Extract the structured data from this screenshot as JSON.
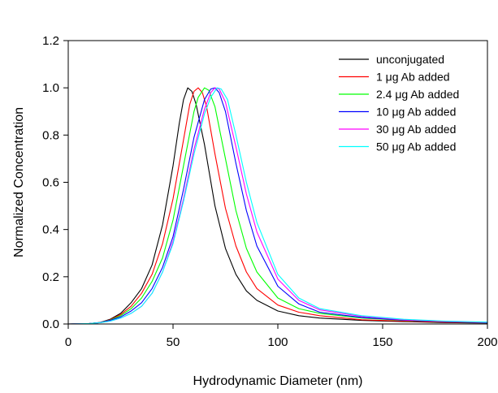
{
  "chart_data": {
    "type": "line",
    "title": "",
    "xlabel": "Hydrodynamic Diameter (nm)",
    "ylabel": "Normalized Concentration",
    "xlim": [
      0,
      200
    ],
    "ylim": [
      0,
      1.2
    ],
    "xticks": [
      "0",
      "50",
      "100",
      "150",
      "200"
    ],
    "yticks": [
      "0.0",
      "0.2",
      "0.4",
      "0.6",
      "0.8",
      "1.0",
      "1.2"
    ],
    "grid": false,
    "legend_position": "top-right",
    "series": [
      {
        "name": "unconjugated",
        "color": "#000000",
        "points": [
          [
            0,
            0
          ],
          [
            10,
            0.002
          ],
          [
            15,
            0.006
          ],
          [
            20,
            0.02
          ],
          [
            25,
            0.045
          ],
          [
            30,
            0.09
          ],
          [
            35,
            0.15
          ],
          [
            40,
            0.25
          ],
          [
            45,
            0.42
          ],
          [
            50,
            0.67
          ],
          [
            53,
            0.85
          ],
          [
            55,
            0.95
          ],
          [
            57,
            1.0
          ],
          [
            59,
            0.985
          ],
          [
            61,
            0.93
          ],
          [
            65,
            0.76
          ],
          [
            70,
            0.5
          ],
          [
            75,
            0.32
          ],
          [
            80,
            0.21
          ],
          [
            85,
            0.14
          ],
          [
            90,
            0.1
          ],
          [
            100,
            0.055
          ],
          [
            110,
            0.035
          ],
          [
            120,
            0.025
          ],
          [
            140,
            0.015
          ],
          [
            160,
            0.01
          ],
          [
            180,
            0.006
          ],
          [
            200,
            0.004
          ]
        ]
      },
      {
        "name": "1 μg Ab added",
        "color": "#ff0000",
        "points": [
          [
            0,
            0
          ],
          [
            10,
            0.002
          ],
          [
            15,
            0.006
          ],
          [
            20,
            0.018
          ],
          [
            25,
            0.04
          ],
          [
            30,
            0.075
          ],
          [
            35,
            0.13
          ],
          [
            40,
            0.21
          ],
          [
            45,
            0.34
          ],
          [
            50,
            0.53
          ],
          [
            55,
            0.78
          ],
          [
            58,
            0.93
          ],
          [
            60,
            0.985
          ],
          [
            62,
            1.0
          ],
          [
            64,
            0.98
          ],
          [
            66,
            0.92
          ],
          [
            70,
            0.72
          ],
          [
            75,
            0.49
          ],
          [
            80,
            0.33
          ],
          [
            85,
            0.22
          ],
          [
            90,
            0.15
          ],
          [
            100,
            0.08
          ],
          [
            110,
            0.05
          ],
          [
            120,
            0.035
          ],
          [
            140,
            0.018
          ],
          [
            160,
            0.012
          ],
          [
            180,
            0.008
          ],
          [
            200,
            0.005
          ]
        ]
      },
      {
        "name": "2.4 μg Ab added",
        "color": "#00ff00",
        "points": [
          [
            0,
            0
          ],
          [
            10,
            0.002
          ],
          [
            15,
            0.006
          ],
          [
            20,
            0.016
          ],
          [
            25,
            0.035
          ],
          [
            30,
            0.065
          ],
          [
            35,
            0.11
          ],
          [
            40,
            0.18
          ],
          [
            45,
            0.28
          ],
          [
            50,
            0.44
          ],
          [
            55,
            0.67
          ],
          [
            60,
            0.9
          ],
          [
            62,
            0.96
          ],
          [
            65,
            1.0
          ],
          [
            67,
            0.99
          ],
          [
            70,
            0.92
          ],
          [
            75,
            0.7
          ],
          [
            80,
            0.48
          ],
          [
            85,
            0.32
          ],
          [
            90,
            0.22
          ],
          [
            100,
            0.11
          ],
          [
            110,
            0.065
          ],
          [
            120,
            0.045
          ],
          [
            140,
            0.025
          ],
          [
            160,
            0.015
          ],
          [
            180,
            0.01
          ],
          [
            200,
            0.006
          ]
        ]
      },
      {
        "name": "10 μg Ab added",
        "color": "#0000ff",
        "points": [
          [
            0,
            0
          ],
          [
            10,
            0.002
          ],
          [
            15,
            0.006
          ],
          [
            20,
            0.015
          ],
          [
            25,
            0.03
          ],
          [
            30,
            0.055
          ],
          [
            35,
            0.09
          ],
          [
            40,
            0.15
          ],
          [
            45,
            0.24
          ],
          [
            50,
            0.37
          ],
          [
            55,
            0.57
          ],
          [
            60,
            0.79
          ],
          [
            65,
            0.95
          ],
          [
            68,
            0.995
          ],
          [
            70,
            1.0
          ],
          [
            72,
            0.98
          ],
          [
            75,
            0.9
          ],
          [
            80,
            0.68
          ],
          [
            85,
            0.48
          ],
          [
            90,
            0.33
          ],
          [
            100,
            0.16
          ],
          [
            110,
            0.085
          ],
          [
            120,
            0.05
          ],
          [
            140,
            0.028
          ],
          [
            160,
            0.016
          ],
          [
            180,
            0.01
          ],
          [
            200,
            0.006
          ]
        ]
      },
      {
        "name": "30 μg Ab added",
        "color": "#ff00ff",
        "points": [
          [
            0,
            0
          ],
          [
            10,
            0.002
          ],
          [
            15,
            0.005
          ],
          [
            20,
            0.012
          ],
          [
            25,
            0.025
          ],
          [
            30,
            0.045
          ],
          [
            35,
            0.075
          ],
          [
            40,
            0.13
          ],
          [
            45,
            0.22
          ],
          [
            50,
            0.35
          ],
          [
            55,
            0.53
          ],
          [
            60,
            0.74
          ],
          [
            65,
            0.91
          ],
          [
            68,
            0.98
          ],
          [
            70,
            1.0
          ],
          [
            72,
            0.995
          ],
          [
            75,
            0.94
          ],
          [
            80,
            0.75
          ],
          [
            85,
            0.55
          ],
          [
            90,
            0.39
          ],
          [
            100,
            0.19
          ],
          [
            110,
            0.1
          ],
          [
            120,
            0.06
          ],
          [
            140,
            0.032
          ],
          [
            160,
            0.018
          ],
          [
            180,
            0.011
          ],
          [
            200,
            0.007
          ]
        ]
      },
      {
        "name": "50 μg Ab added",
        "color": "#00ffff",
        "points": [
          [
            0,
            0
          ],
          [
            10,
            0.002
          ],
          [
            15,
            0.005
          ],
          [
            20,
            0.012
          ],
          [
            25,
            0.025
          ],
          [
            30,
            0.045
          ],
          [
            35,
            0.075
          ],
          [
            40,
            0.13
          ],
          [
            45,
            0.22
          ],
          [
            50,
            0.34
          ],
          [
            55,
            0.52
          ],
          [
            60,
            0.72
          ],
          [
            65,
            0.89
          ],
          [
            68,
            0.96
          ],
          [
            71,
            1.0
          ],
          [
            73,
            0.995
          ],
          [
            76,
            0.95
          ],
          [
            80,
            0.8
          ],
          [
            85,
            0.6
          ],
          [
            90,
            0.43
          ],
          [
            100,
            0.21
          ],
          [
            110,
            0.11
          ],
          [
            120,
            0.065
          ],
          [
            140,
            0.035
          ],
          [
            160,
            0.02
          ],
          [
            180,
            0.012
          ],
          [
            200,
            0.008
          ]
        ]
      }
    ]
  }
}
